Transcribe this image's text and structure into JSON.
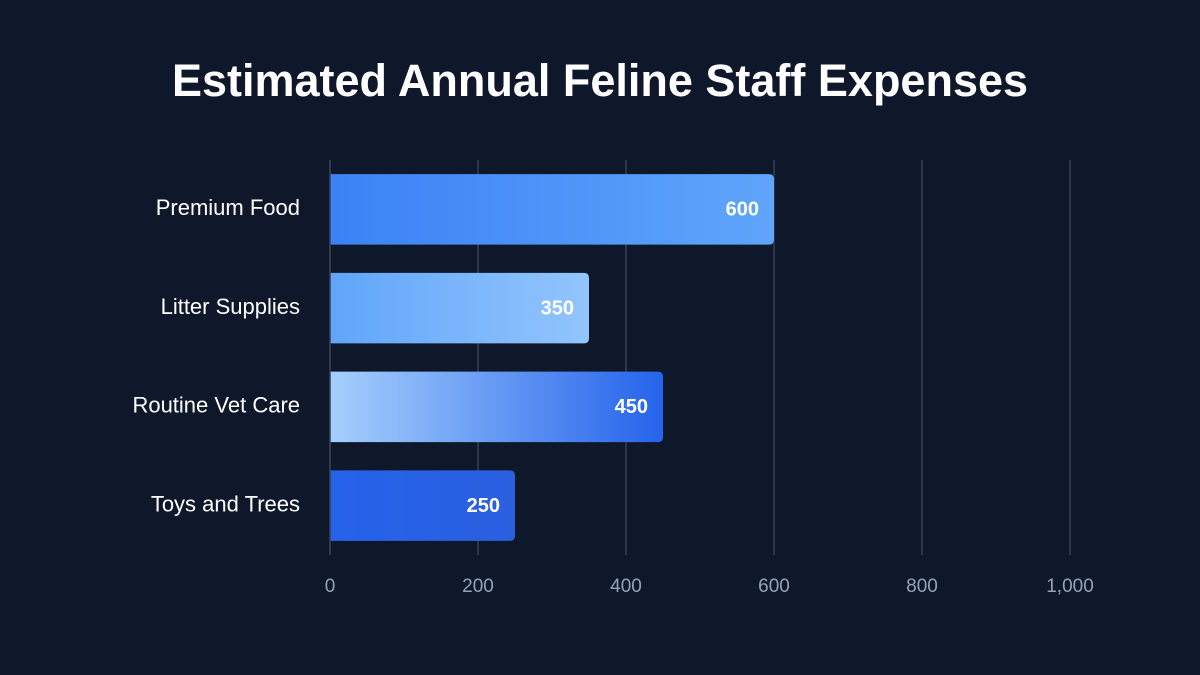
{
  "chart_data": {
    "type": "bar",
    "orientation": "horizontal",
    "title": "Estimated Annual Feline Staff Expenses",
    "categories": [
      "Premium Food",
      "Litter Supplies",
      "Routine Vet Care",
      "Toys and Trees"
    ],
    "values": [
      600,
      350,
      450,
      250
    ],
    "colors": [
      [
        "#3b82f6",
        "#60a5fa"
      ],
      [
        "#60a5fa",
        "#93c5fd"
      ],
      [
        "#a5cffd",
        "#2563eb"
      ],
      [
        "#2563eb",
        "#2a5fe0"
      ]
    ],
    "xlim": [
      0,
      1000
    ],
    "xticks": [
      0,
      200,
      400,
      600,
      800,
      {
        "value": 1000,
        "label": "1,000"
      }
    ],
    "grid": true
  }
}
